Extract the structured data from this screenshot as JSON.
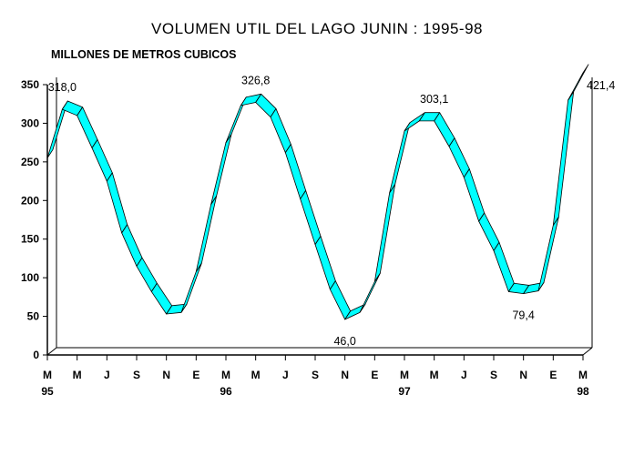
{
  "chart_data": {
    "type": "line",
    "title": "VOLUMEN UTIL DEL LAGO JUNIN : 1995-98",
    "subtitle": "MILLONES DE METROS CUBICOS",
    "xlabel": "",
    "ylabel": "",
    "ylim": [
      0,
      350
    ],
    "yticks": [
      0,
      50,
      100,
      150,
      200,
      250,
      300,
      350
    ],
    "x_ticks": [
      {
        "month": "M",
        "year": "95"
      },
      {
        "month": "M",
        "year": ""
      },
      {
        "month": "J",
        "year": ""
      },
      {
        "month": "S",
        "year": ""
      },
      {
        "month": "N",
        "year": ""
      },
      {
        "month": "E",
        "year": ""
      },
      {
        "month": "M",
        "year": "96"
      },
      {
        "month": "M",
        "year": ""
      },
      {
        "month": "J",
        "year": ""
      },
      {
        "month": "S",
        "year": ""
      },
      {
        "month": "N",
        "year": ""
      },
      {
        "month": "E",
        "year": ""
      },
      {
        "month": "M",
        "year": "97"
      },
      {
        "month": "M",
        "year": ""
      },
      {
        "month": "J",
        "year": ""
      },
      {
        "month": "S",
        "year": ""
      },
      {
        "month": "N",
        "year": ""
      },
      {
        "month": "E",
        "year": ""
      },
      {
        "month": "M",
        "year": "98"
      }
    ],
    "grid": false,
    "style": "3d-ribbon",
    "colors": {
      "ribbon": "#00ffff",
      "outline": "#000000"
    },
    "values": [
      255,
      318,
      310,
      268,
      225,
      158,
      115,
      82,
      53,
      55,
      108,
      195,
      275,
      323,
      327,
      308,
      262,
      202,
      143,
      85,
      46,
      55,
      95,
      210,
      290,
      303,
      303,
      270,
      230,
      173,
      135,
      82,
      79.4,
      83,
      168,
      330,
      421.4
    ],
    "annotations": [
      {
        "index": 1,
        "label": "318,0",
        "anchor": "above"
      },
      {
        "index": 14,
        "label": "326,8",
        "anchor": "above"
      },
      {
        "index": 20,
        "label": "46,0",
        "anchor": "below"
      },
      {
        "index": 26,
        "label": "303,1",
        "anchor": "above"
      },
      {
        "index": 32,
        "label": "79,4",
        "anchor": "below"
      },
      {
        "index": 36,
        "label": "421,4",
        "anchor": "right"
      }
    ]
  }
}
